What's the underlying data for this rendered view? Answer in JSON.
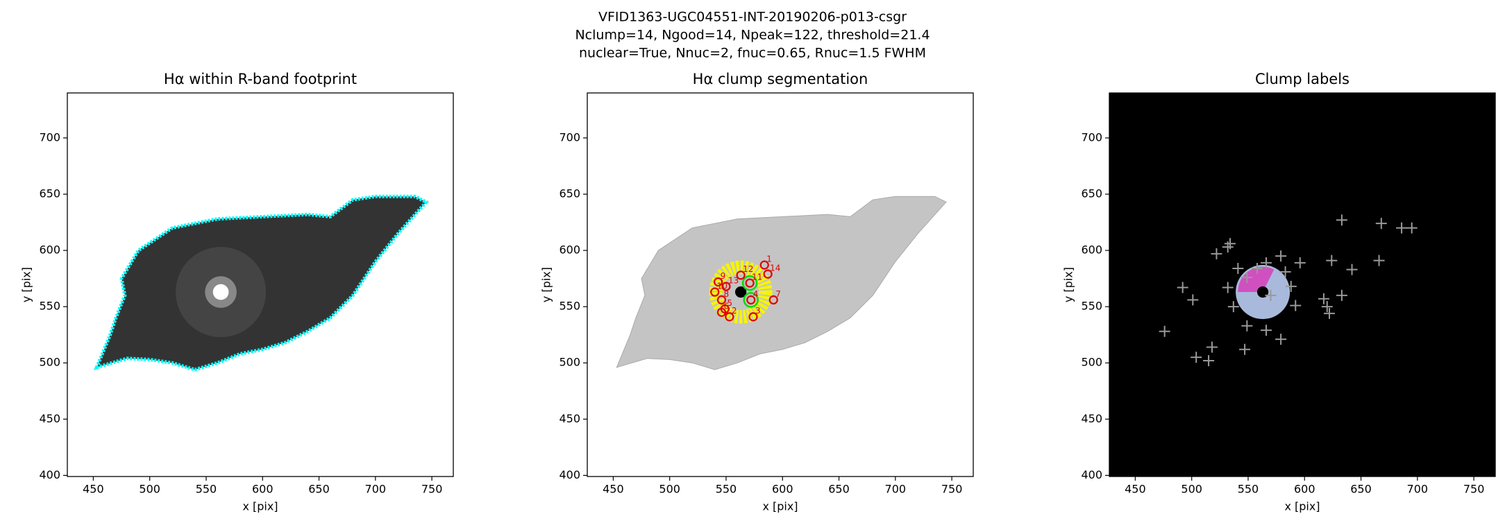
{
  "suptitle": [
    "VFID1363-UGC04551-INT-20190206-p013-csgr",
    "Nclump=14, Ngood=14, Npeak=122, threshold=21.4",
    "nuclear=True, Nnuc=2, fnuc=0.65, Rnuc=1.5 FWHM"
  ],
  "chart_data": [
    {
      "type": "image",
      "title": "Hα within R-band footprint",
      "xlabel": "x [pix]",
      "ylabel": "y [pix]",
      "xlim": [
        427,
        769
      ],
      "ylim": [
        399,
        740
      ],
      "xticks": [
        450,
        500,
        550,
        600,
        650,
        700,
        750
      ],
      "yticks": [
        400,
        450,
        500,
        550,
        600,
        650,
        700
      ],
      "footprint": {
        "x": [
          453,
          480,
          500,
          520,
          540,
          560,
          580,
          600,
          620,
          640,
          660,
          680,
          700,
          720,
          745,
          735,
          700,
          680,
          660,
          640,
          600,
          560,
          520,
          490,
          475,
          478,
          470,
          465
        ],
        "y": [
          496,
          504,
          503,
          500,
          494,
          500,
          508,
          512,
          518,
          528,
          540,
          560,
          590,
          615,
          643,
          648,
          648,
          645,
          630,
          632,
          630,
          628,
          620,
          600,
          575,
          560,
          540,
          525
        ]
      },
      "nucleus": {
        "x": 563,
        "y": 563
      }
    },
    {
      "type": "segmentation",
      "title": "Hα clump segmentation",
      "xlabel": "x [pix]",
      "ylabel": "y [pix]",
      "xlim": [
        427,
        769
      ],
      "ylim": [
        399,
        740
      ],
      "xticks": [
        450,
        500,
        550,
        600,
        650,
        700,
        750
      ],
      "yticks": [
        400,
        450,
        500,
        550,
        600,
        650,
        700
      ],
      "footprint": {
        "x": [
          453,
          480,
          500,
          520,
          540,
          560,
          580,
          600,
          620,
          640,
          660,
          680,
          700,
          720,
          745,
          735,
          700,
          680,
          660,
          640,
          600,
          560,
          520,
          490,
          475,
          478,
          470,
          465
        ],
        "y": [
          496,
          504,
          503,
          500,
          494,
          500,
          508,
          512,
          518,
          528,
          540,
          560,
          590,
          615,
          643,
          648,
          648,
          645,
          630,
          632,
          630,
          628,
          620,
          600,
          575,
          560,
          540,
          525
        ]
      },
      "nucleus": {
        "x": 563,
        "y": 563
      },
      "clumps": {
        "labels": [
          "1",
          "2",
          "3",
          "4",
          "5",
          "6",
          "7",
          "8",
          "9",
          "10",
          "11",
          "12",
          "13",
          "14"
        ],
        "x": [
          584,
          553,
          574,
          572,
          549,
          546,
          592,
          546,
          543,
          540,
          571,
          563,
          550,
          587
        ],
        "y": [
          587,
          541,
          541,
          556,
          548,
          545,
          556,
          556,
          572,
          563,
          571,
          578,
          568,
          579
        ]
      },
      "nuclear": {
        "x": [
          572,
          571
        ],
        "y": [
          556,
          571
        ]
      }
    },
    {
      "type": "labels",
      "title": "Clump labels",
      "xlabel": "x [pix]",
      "ylabel": "y [pix]",
      "xlim": [
        427,
        769
      ],
      "ylim": [
        399,
        740
      ],
      "xticks": [
        450,
        500,
        550,
        600,
        650,
        700,
        750
      ],
      "yticks": [
        400,
        450,
        500,
        550,
        600,
        650,
        700
      ],
      "nucleus": {
        "x": 563,
        "y": 563
      },
      "peaks": {
        "x": [
          476,
          492,
          501,
          504,
          515,
          518,
          522,
          532,
          534,
          547,
          633,
          668,
          686,
          695,
          666,
          642,
          633,
          624,
          617,
          622,
          620,
          549,
          558,
          566,
          579,
          583,
          588,
          592,
          579,
          566,
          549,
          537,
          532,
          541,
          596,
          570
        ],
        "y": [
          528,
          567,
          556,
          505,
          502,
          514,
          597,
          603,
          606,
          512,
          627,
          624,
          620,
          620,
          591,
          583,
          560,
          591,
          557,
          544,
          550,
          576,
          584,
          589,
          595,
          581,
          568,
          551,
          521,
          529,
          533,
          550,
          567,
          584,
          589,
          560
        ]
      }
    }
  ]
}
